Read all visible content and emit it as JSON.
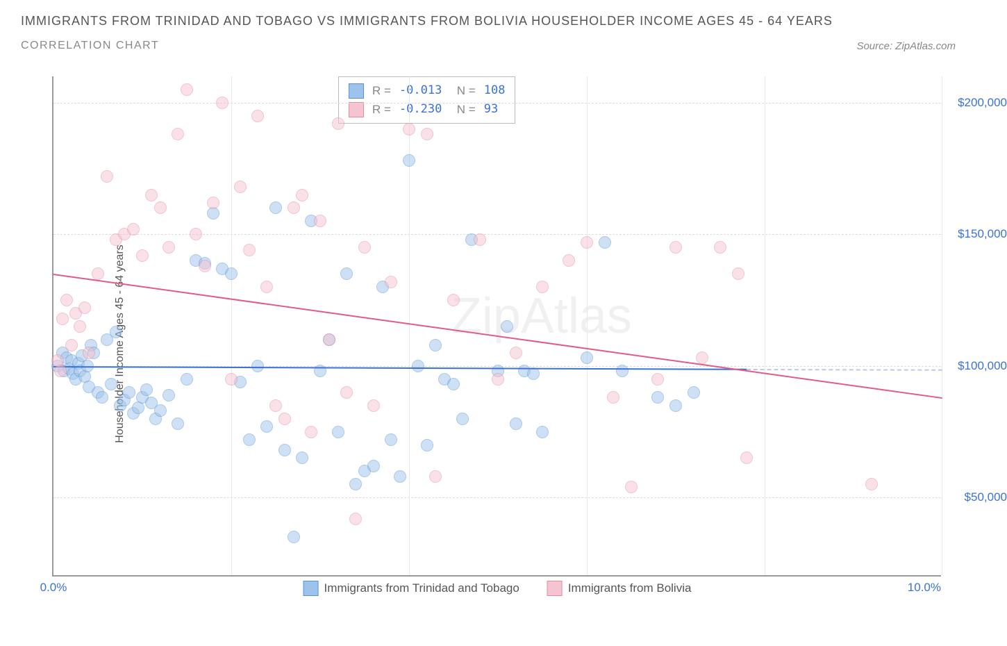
{
  "title": "IMMIGRANTS FROM TRINIDAD AND TOBAGO VS IMMIGRANTS FROM BOLIVIA HOUSEHOLDER INCOME AGES 45 - 64 YEARS",
  "subtitle": "CORRELATION CHART",
  "source": "Source: ZipAtlas.com",
  "y_axis_label": "Householder Income Ages 45 - 64 years",
  "watermark": "ZipAtlas",
  "chart": {
    "type": "scatter",
    "xlim": [
      0,
      10
    ],
    "ylim": [
      20000,
      210000
    ],
    "x_ticks": [
      0,
      2,
      4,
      6,
      8
    ],
    "x_tick_labels": [
      "0.0%",
      "",
      "",
      "",
      ""
    ],
    "x_max_label": "10.0%",
    "y_ticks": [
      50000,
      100000,
      150000,
      200000
    ],
    "y_tick_labels": [
      "$50,000",
      "$100,000",
      "$150,000",
      "$200,000"
    ],
    "grid_color": "#dcdcdc",
    "background_color": "#ffffff",
    "marker_radius": 9,
    "marker_opacity": 0.5,
    "series": [
      {
        "name": "Immigrants from Trinidad and Tobago",
        "fill": "#9ec3ea",
        "stroke": "#5a94d6",
        "trend_color": "#3a72d8",
        "R": "-0.013",
        "N": "108",
        "trend": {
          "x0": 0,
          "y0": 100000,
          "x1": 7.8,
          "y1": 99000
        },
        "dash": {
          "x0": 7.8,
          "y0": 99000,
          "x1": 10,
          "y1": 98800
        },
        "points": [
          [
            0.05,
            100000
          ],
          [
            0.1,
            105000
          ],
          [
            0.12,
            98000
          ],
          [
            0.15,
            103000
          ],
          [
            0.18,
            99000
          ],
          [
            0.2,
            102000
          ],
          [
            0.22,
            97000
          ],
          [
            0.25,
            95000
          ],
          [
            0.28,
            101000
          ],
          [
            0.3,
            98000
          ],
          [
            0.32,
            104000
          ],
          [
            0.35,
            96000
          ],
          [
            0.38,
            100000
          ],
          [
            0.4,
            92000
          ],
          [
            0.42,
            108000
          ],
          [
            0.45,
            105000
          ],
          [
            0.5,
            90000
          ],
          [
            0.55,
            88000
          ],
          [
            0.6,
            110000
          ],
          [
            0.65,
            93000
          ],
          [
            0.7,
            113000
          ],
          [
            0.75,
            85000
          ],
          [
            0.8,
            87000
          ],
          [
            0.85,
            90000
          ],
          [
            0.9,
            82000
          ],
          [
            0.95,
            84000
          ],
          [
            1.0,
            88000
          ],
          [
            1.05,
            91000
          ],
          [
            1.1,
            86000
          ],
          [
            1.15,
            80000
          ],
          [
            1.2,
            83000
          ],
          [
            1.3,
            89000
          ],
          [
            1.4,
            78000
          ],
          [
            1.5,
            95000
          ],
          [
            1.6,
            140000
          ],
          [
            1.7,
            139000
          ],
          [
            1.8,
            158000
          ],
          [
            1.9,
            137000
          ],
          [
            2.0,
            135000
          ],
          [
            2.1,
            94000
          ],
          [
            2.2,
            72000
          ],
          [
            2.3,
            100000
          ],
          [
            2.4,
            77000
          ],
          [
            2.5,
            160000
          ],
          [
            2.6,
            68000
          ],
          [
            2.7,
            35000
          ],
          [
            2.8,
            65000
          ],
          [
            2.9,
            155000
          ],
          [
            3.0,
            98000
          ],
          [
            3.1,
            110000
          ],
          [
            3.2,
            75000
          ],
          [
            3.3,
            135000
          ],
          [
            3.4,
            55000
          ],
          [
            3.5,
            60000
          ],
          [
            3.6,
            62000
          ],
          [
            3.7,
            130000
          ],
          [
            3.8,
            72000
          ],
          [
            3.9,
            58000
          ],
          [
            4.0,
            178000
          ],
          [
            4.1,
            100000
          ],
          [
            4.2,
            70000
          ],
          [
            4.3,
            108000
          ],
          [
            4.4,
            95000
          ],
          [
            4.5,
            93000
          ],
          [
            4.6,
            80000
          ],
          [
            4.7,
            148000
          ],
          [
            5.0,
            98000
          ],
          [
            5.1,
            115000
          ],
          [
            5.2,
            78000
          ],
          [
            5.3,
            98000
          ],
          [
            5.4,
            97000
          ],
          [
            5.5,
            75000
          ],
          [
            6.0,
            103000
          ],
          [
            6.2,
            147000
          ],
          [
            6.4,
            98000
          ],
          [
            6.8,
            88000
          ],
          [
            7.0,
            85000
          ],
          [
            7.2,
            90000
          ]
        ]
      },
      {
        "name": "Immigrants from Bolivia",
        "fill": "#f5c4d0",
        "stroke": "#e68aa5",
        "trend_color": "#e35a85",
        "R": "-0.230",
        "N": "93",
        "trend": {
          "x0": 0,
          "y0": 135000,
          "x1": 10,
          "y1": 88000
        },
        "points": [
          [
            0.05,
            102000
          ],
          [
            0.08,
            98000
          ],
          [
            0.1,
            118000
          ],
          [
            0.15,
            125000
          ],
          [
            0.2,
            108000
          ],
          [
            0.25,
            120000
          ],
          [
            0.3,
            115000
          ],
          [
            0.35,
            122000
          ],
          [
            0.4,
            105000
          ],
          [
            0.5,
            135000
          ],
          [
            0.6,
            172000
          ],
          [
            0.7,
            148000
          ],
          [
            0.8,
            150000
          ],
          [
            0.9,
            152000
          ],
          [
            1.0,
            142000
          ],
          [
            1.1,
            165000
          ],
          [
            1.2,
            160000
          ],
          [
            1.3,
            145000
          ],
          [
            1.4,
            188000
          ],
          [
            1.5,
            205000
          ],
          [
            1.6,
            150000
          ],
          [
            1.7,
            138000
          ],
          [
            1.8,
            162000
          ],
          [
            1.9,
            200000
          ],
          [
            2.0,
            95000
          ],
          [
            2.1,
            168000
          ],
          [
            2.2,
            144000
          ],
          [
            2.3,
            195000
          ],
          [
            2.4,
            130000
          ],
          [
            2.5,
            85000
          ],
          [
            2.6,
            80000
          ],
          [
            2.7,
            160000
          ],
          [
            2.8,
            165000
          ],
          [
            2.9,
            75000
          ],
          [
            3.0,
            155000
          ],
          [
            3.1,
            110000
          ],
          [
            3.2,
            192000
          ],
          [
            3.3,
            90000
          ],
          [
            3.4,
            42000
          ],
          [
            3.5,
            145000
          ],
          [
            3.6,
            85000
          ],
          [
            3.8,
            132000
          ],
          [
            4.0,
            190000
          ],
          [
            4.2,
            188000
          ],
          [
            4.3,
            58000
          ],
          [
            4.5,
            125000
          ],
          [
            4.8,
            148000
          ],
          [
            5.0,
            95000
          ],
          [
            5.2,
            105000
          ],
          [
            5.5,
            130000
          ],
          [
            5.8,
            140000
          ],
          [
            6.0,
            147000
          ],
          [
            6.3,
            88000
          ],
          [
            6.5,
            54000
          ],
          [
            6.8,
            95000
          ],
          [
            7.0,
            145000
          ],
          [
            7.3,
            103000
          ],
          [
            7.5,
            145000
          ],
          [
            7.7,
            135000
          ],
          [
            7.8,
            65000
          ],
          [
            9.2,
            55000
          ]
        ]
      }
    ]
  },
  "legend_bottom": [
    {
      "label": "Immigrants from Trinidad and Tobago",
      "fill": "#9ec3ea",
      "stroke": "#5a94d6"
    },
    {
      "label": "Immigrants from Bolivia",
      "fill": "#f5c4d0",
      "stroke": "#e68aa5"
    }
  ]
}
